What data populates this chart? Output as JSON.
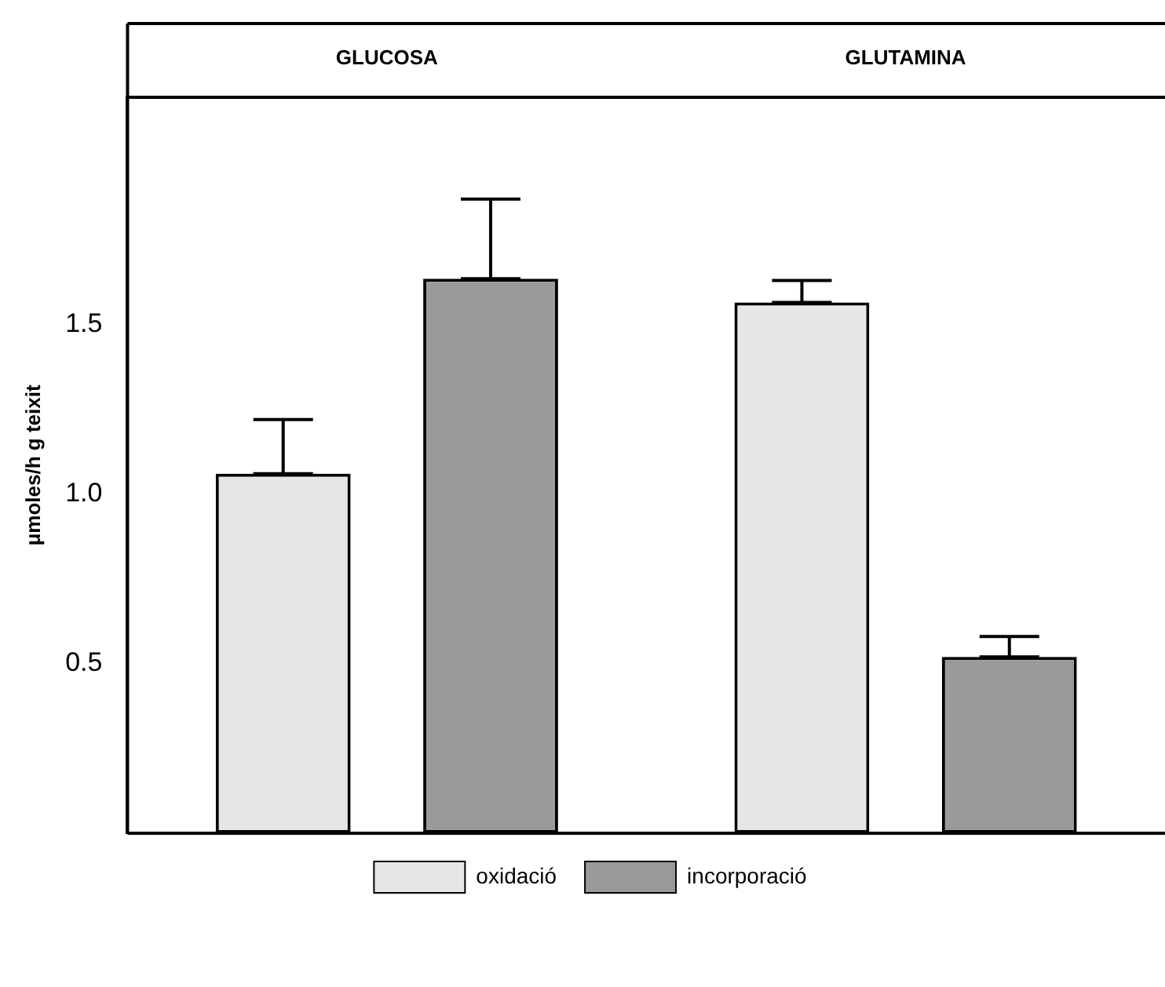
{
  "chart_data": {
    "type": "bar",
    "ylabel": "μmoles/h g teixit",
    "categories": [
      "GLUCOSA",
      "GLUTAMINA"
    ],
    "series": [
      {
        "name": "oxidació",
        "color": "#e6e6e6",
        "values": [
          1.06,
          1.565
        ],
        "errors": [
          [
            1.06,
            1.22
          ],
          [
            1.565,
            1.63
          ]
        ]
      },
      {
        "name": "incorporació",
        "color": "#9a9a9a",
        "values": [
          1.635,
          0.52
        ],
        "errors": [
          [
            1.635,
            1.87
          ],
          [
            0.52,
            0.58
          ]
        ]
      }
    ],
    "ylim": [
      0,
      2.17
    ],
    "yticks": [
      {
        "value": 0.5,
        "label": "0.5"
      },
      {
        "value": 1,
        "label": "1.0"
      },
      {
        "value": 1.5,
        "label": "1.5"
      }
    ],
    "grid": false,
    "legend": "bottom"
  }
}
